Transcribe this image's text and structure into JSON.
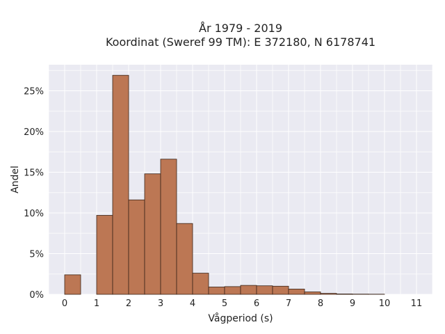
{
  "chart_data": {
    "type": "bar",
    "title_lines": [
      "År 1979 - 2019",
      "Koordinat (Sweref 99 TM): E 372180, N 6178741"
    ],
    "xlabel": "Vågperiod (s)",
    "ylabel": "Andel",
    "x_ticks": [
      "0",
      "1",
      "2",
      "3",
      "4",
      "5",
      "6",
      "7",
      "8",
      "9",
      "10",
      "11"
    ],
    "y_ticks": [
      "0%",
      "5%",
      "10%",
      "15%",
      "20%",
      "25%"
    ],
    "bin_width": 0.5,
    "xlim": [
      -0.5,
      11.5
    ],
    "ylim": [
      0,
      28.2
    ],
    "grid": true,
    "bars": [
      {
        "x": 0.0,
        "value": 2.4
      },
      {
        "x": 1.0,
        "value": 9.7
      },
      {
        "x": 1.5,
        "value": 26.9
      },
      {
        "x": 2.0,
        "value": 11.6
      },
      {
        "x": 2.5,
        "value": 14.8
      },
      {
        "x": 3.0,
        "value": 16.6
      },
      {
        "x": 3.5,
        "value": 8.7
      },
      {
        "x": 4.0,
        "value": 2.6
      },
      {
        "x": 4.5,
        "value": 0.9
      },
      {
        "x": 5.0,
        "value": 0.95
      },
      {
        "x": 5.5,
        "value": 1.1
      },
      {
        "x": 6.0,
        "value": 1.05
      },
      {
        "x": 6.5,
        "value": 1.0
      },
      {
        "x": 7.0,
        "value": 0.65
      },
      {
        "x": 7.5,
        "value": 0.3
      },
      {
        "x": 8.0,
        "value": 0.12
      },
      {
        "x": 8.5,
        "value": 0.05
      },
      {
        "x": 9.0,
        "value": 0.03
      },
      {
        "x": 9.5,
        "value": 0.02
      }
    ],
    "colors": {
      "bar": "#bc7754",
      "edge": "#3a2418",
      "plot_bg": "#eaeaf2"
    }
  }
}
